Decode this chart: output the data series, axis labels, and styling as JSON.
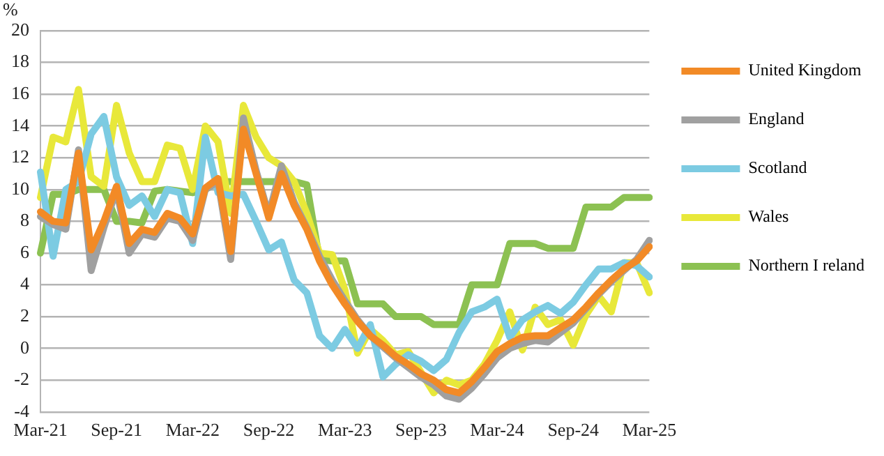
{
  "chart_data": {
    "type": "line",
    "ylabel": "%",
    "categories": [
      "Mar-21",
      null,
      null,
      null,
      null,
      null,
      "Sep-21",
      null,
      null,
      null,
      null,
      null,
      "Mar-22",
      null,
      null,
      null,
      null,
      null,
      "Sep-22",
      null,
      null,
      null,
      null,
      null,
      "Mar-23",
      null,
      null,
      null,
      null,
      null,
      "Sep-23",
      null,
      null,
      null,
      null,
      null,
      "Mar-24",
      null,
      null,
      null,
      null,
      null,
      "Sep-24",
      null,
      null,
      null,
      null,
      null,
      "Mar-25"
    ],
    "series": [
      {
        "name": "United Kingdom",
        "color": "#f28a26",
        "values": [
          8.6,
          8.0,
          7.9,
          12.3,
          6.2,
          8.0,
          10.2,
          6.6,
          7.5,
          7.3,
          8.5,
          8.2,
          7.2,
          10.1,
          10.7,
          6.1,
          13.8,
          11.0,
          8.2,
          11.0,
          9.0,
          7.5,
          5.5,
          4.0,
          2.8,
          1.7,
          0.8,
          0.2,
          -0.5,
          -1.0,
          -1.6,
          -2.0,
          -2.6,
          -2.8,
          -2.1,
          -1.2,
          -0.2,
          0.3,
          0.7,
          0.8,
          0.8,
          1.3,
          1.8,
          2.6,
          3.5,
          4.3,
          5.0,
          5.5,
          6.4
        ]
      },
      {
        "name": "England",
        "color": "#a0a0a0",
        "values": [
          8.3,
          7.8,
          7.5,
          12.5,
          4.9,
          7.6,
          10.0,
          6.0,
          7.2,
          7.0,
          8.2,
          8.0,
          6.8,
          10.0,
          10.5,
          5.6,
          14.5,
          11.2,
          8.4,
          11.5,
          9.2,
          7.6,
          5.8,
          4.3,
          3.0,
          1.8,
          0.8,
          0.1,
          -0.6,
          -1.2,
          -1.8,
          -2.3,
          -3.0,
          -3.2,
          -2.5,
          -1.6,
          -0.6,
          0.0,
          0.3,
          0.5,
          0.4,
          1.0,
          1.6,
          2.5,
          3.4,
          4.2,
          4.9,
          5.6,
          6.8
        ]
      },
      {
        "name": "Scotland",
        "color": "#7ccbe2",
        "values": [
          11.1,
          5.8,
          10.0,
          10.5,
          13.5,
          14.6,
          10.8,
          9.0,
          9.6,
          8.3,
          10.0,
          9.8,
          6.6,
          13.3,
          9.8,
          9.6,
          9.7,
          8.0,
          6.2,
          6.7,
          4.3,
          3.5,
          0.8,
          0.0,
          1.2,
          0.0,
          1.5,
          -1.8,
          -1.0,
          -0.4,
          -0.8,
          -1.4,
          -0.7,
          1.0,
          2.3,
          2.6,
          3.1,
          0.7,
          1.8,
          2.3,
          2.7,
          2.2,
          2.9,
          4.0,
          5.0,
          5.0,
          5.4,
          5.2,
          4.5
        ]
      },
      {
        "name": "Wales",
        "color": "#e8e83a",
        "values": [
          9.5,
          13.3,
          13.0,
          16.3,
          10.8,
          10.2,
          15.3,
          12.3,
          10.5,
          10.5,
          12.8,
          12.6,
          10.0,
          14.0,
          13.0,
          8.5,
          15.3,
          13.3,
          12.0,
          11.5,
          10.5,
          8.5,
          6.0,
          5.9,
          3.7,
          -0.3,
          1.2,
          0.5,
          -0.4,
          -0.2,
          -1.5,
          -2.8,
          -2.0,
          -2.3,
          -2.0,
          -1.0,
          0.5,
          2.3,
          -0.1,
          2.6,
          1.5,
          1.8,
          0.2,
          2.1,
          3.3,
          2.3,
          5.4,
          5.4,
          3.5
        ]
      },
      {
        "name": "Northern I reland",
        "color": "#8cc152",
        "values": [
          6.0,
          9.7,
          9.7,
          10.0,
          10.0,
          10.0,
          8.0,
          8.0,
          7.9,
          9.9,
          10.0,
          9.9,
          9.8,
          10.0,
          10.5,
          10.5,
          10.5,
          10.5,
          10.5,
          10.5,
          10.5,
          10.3,
          5.6,
          5.5,
          5.5,
          2.8,
          2.8,
          2.8,
          2.0,
          2.0,
          2.0,
          1.5,
          1.5,
          1.5,
          4.0,
          4.0,
          4.0,
          6.6,
          6.6,
          6.6,
          6.3,
          6.3,
          6.3,
          8.9,
          8.9,
          8.9,
          9.5,
          9.5,
          9.5
        ]
      }
    ],
    "ylim": [
      -4,
      20
    ],
    "yticks": [
      -4,
      -2,
      0,
      2,
      4,
      6,
      8,
      10,
      12,
      14,
      16,
      18,
      20
    ],
    "grid": "y",
    "legend": "right",
    "marker": "none",
    "line_style": "solid"
  }
}
